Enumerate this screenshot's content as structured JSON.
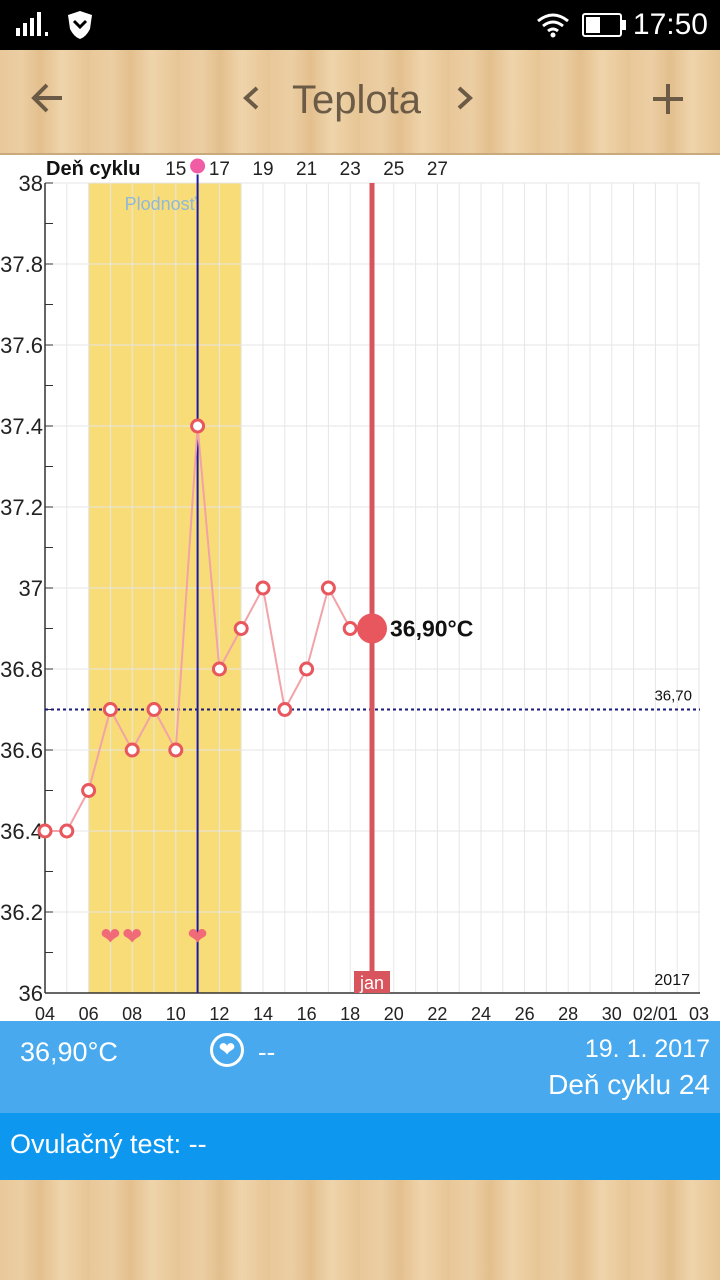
{
  "status_bar": {
    "time": "17:50",
    "icons": [
      "signal-icon",
      "shield-icon",
      "wifi-icon",
      "battery-icon"
    ]
  },
  "app_bar": {
    "title": "Teplota",
    "back_icon": "arrow-left-icon",
    "prev_icon": "chevron-left-icon",
    "next_icon": "chevron-right-icon",
    "add_icon": "plus-icon"
  },
  "chart_data": {
    "type": "line",
    "top_axis_label": "Deň cyklu",
    "cycle_days": [
      "15",
      "17",
      "19",
      "21",
      "23",
      "25",
      "27"
    ],
    "y_ticks": [
      "38",
      "37.8",
      "37.6",
      "37.4",
      "37.2",
      "37",
      "36.8",
      "36.6",
      "36.4",
      "36.2",
      "36"
    ],
    "ylim": [
      36,
      38
    ],
    "x_labels": [
      "04",
      "06",
      "08",
      "10",
      "12",
      "14",
      "16",
      "18",
      "20",
      "22",
      "24",
      "26",
      "28",
      "30",
      "02/01",
      "03"
    ],
    "x_range_days": [
      "2017-01-04",
      "2017-02-03"
    ],
    "fertile_label": "Plodnosť",
    "fertile_range_days": [
      6,
      13
    ],
    "ovulation_day": 11,
    "month_label": "jan",
    "year_label": "2017",
    "reference_line": {
      "value": 36.7,
      "label": "36,70"
    },
    "selected": {
      "day": 19,
      "value": 36.9,
      "label": "36,90°C"
    },
    "heart_days": [
      7,
      8,
      11
    ],
    "series": [
      {
        "x": [
          4,
          5,
          6,
          7,
          8,
          9,
          10,
          11,
          12,
          13,
          14,
          15,
          16,
          17,
          18,
          19
        ],
        "values": [
          36.4,
          36.4,
          36.5,
          36.7,
          36.6,
          36.7,
          36.6,
          37.4,
          36.8,
          36.9,
          37.0,
          36.7,
          36.8,
          37.0,
          36.9,
          36.9
        ]
      }
    ],
    "colors": {
      "fertile": "#f8dc77",
      "line": "#f2a3a8",
      "marker": "#e8575d",
      "ovulation": "#1a1aa8",
      "selected_line": "#d9555d",
      "reference": "#1a1a7a"
    }
  },
  "info": {
    "temperature": "36,90°C",
    "heart_value": "--",
    "date": "19. 1. 2017",
    "cycle_day": "Deň cyklu 24"
  },
  "ovulation_test": {
    "text": "Ovulačný test: --"
  }
}
